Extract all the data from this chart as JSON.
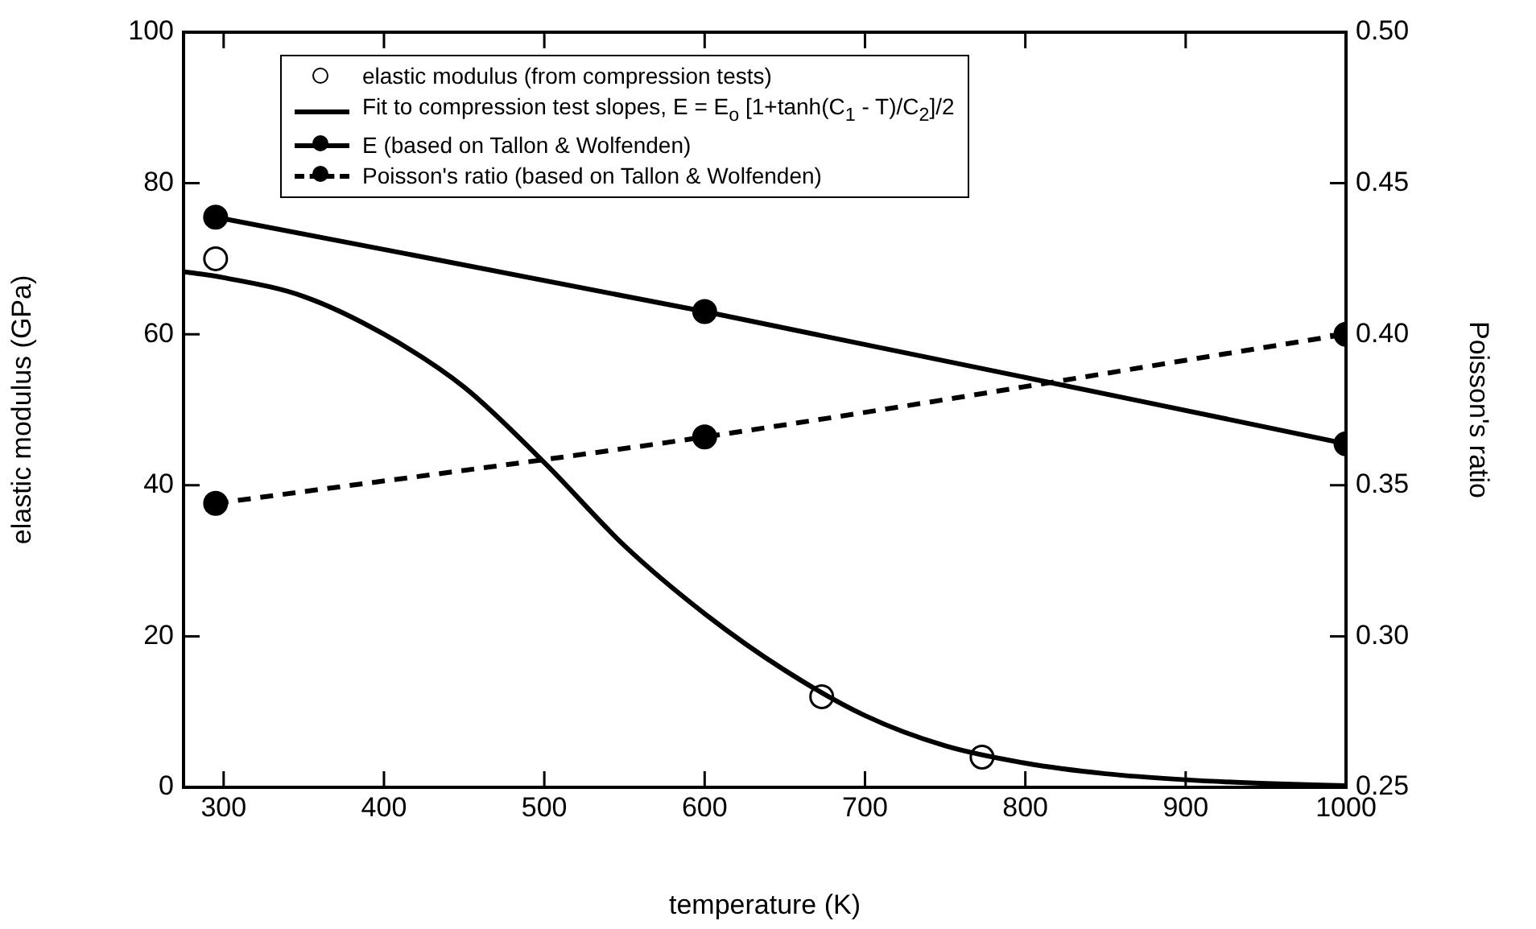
{
  "chart_data": {
    "type": "line",
    "xlabel": "temperature (K)",
    "ylabel": "elastic modulus (GPa)",
    "y2label": "Poisson's ratio",
    "xlim": [
      275,
      1000
    ],
    "xticks": [
      300,
      400,
      500,
      600,
      700,
      800,
      900,
      1000
    ],
    "ylim": [
      0,
      100
    ],
    "yticks": [
      0,
      20,
      40,
      60,
      80,
      100
    ],
    "y2lim": [
      0.25,
      0.5
    ],
    "y2ticks": [
      0.25,
      {
        "value": 0.3,
        "label": "0.30"
      },
      0.35,
      {
        "value": 0.4,
        "label": "0.40"
      },
      0.45,
      {
        "value": 0.5,
        "label": "0.50"
      }
    ],
    "grid": false,
    "legend": "top",
    "line_style": "solid",
    "series": [
      {
        "name": "elastic modulus (from compression tests)",
        "type": "scatter",
        "marker": "circle",
        "color": "#000000",
        "x": [
          295,
          673,
          773
        ],
        "values": [
          70,
          12,
          4
        ]
      },
      {
        "name": "Fit to compression test slopes, E = E$_{o}$ [1+tanh(C$_{1}$ - T)/C$_{2}$]/2",
        "type": "line",
        "marker": "none",
        "color": "#000000",
        "x": [
          275,
          300,
          350,
          400,
          450,
          500,
          550,
          600,
          650,
          700,
          750,
          800,
          850,
          900,
          950,
          1000
        ],
        "values": [
          68.3,
          67.5,
          65,
          60,
          53,
          43,
          32,
          23,
          15.5,
          9.5,
          5.5,
          3.2,
          1.8,
          1,
          0.5,
          0.2
        ]
      },
      {
        "name": "E (based on Tallon & Wolfenden)",
        "type": "line",
        "marker": "circle",
        "color": "#000000",
        "x": [
          295,
          600,
          1000
        ],
        "values": [
          75.5,
          63,
          45.5
        ]
      },
      {
        "name": "Poisson's ratio (based on Tallon & Wolfenden)",
        "type": "line",
        "marker": "circle",
        "line_style": "dashed",
        "axis": "y2",
        "color": "#000000",
        "x": [
          295,
          600,
          1000
        ],
        "values": [
          0.344,
          0.366,
          0.4
        ]
      }
    ]
  }
}
